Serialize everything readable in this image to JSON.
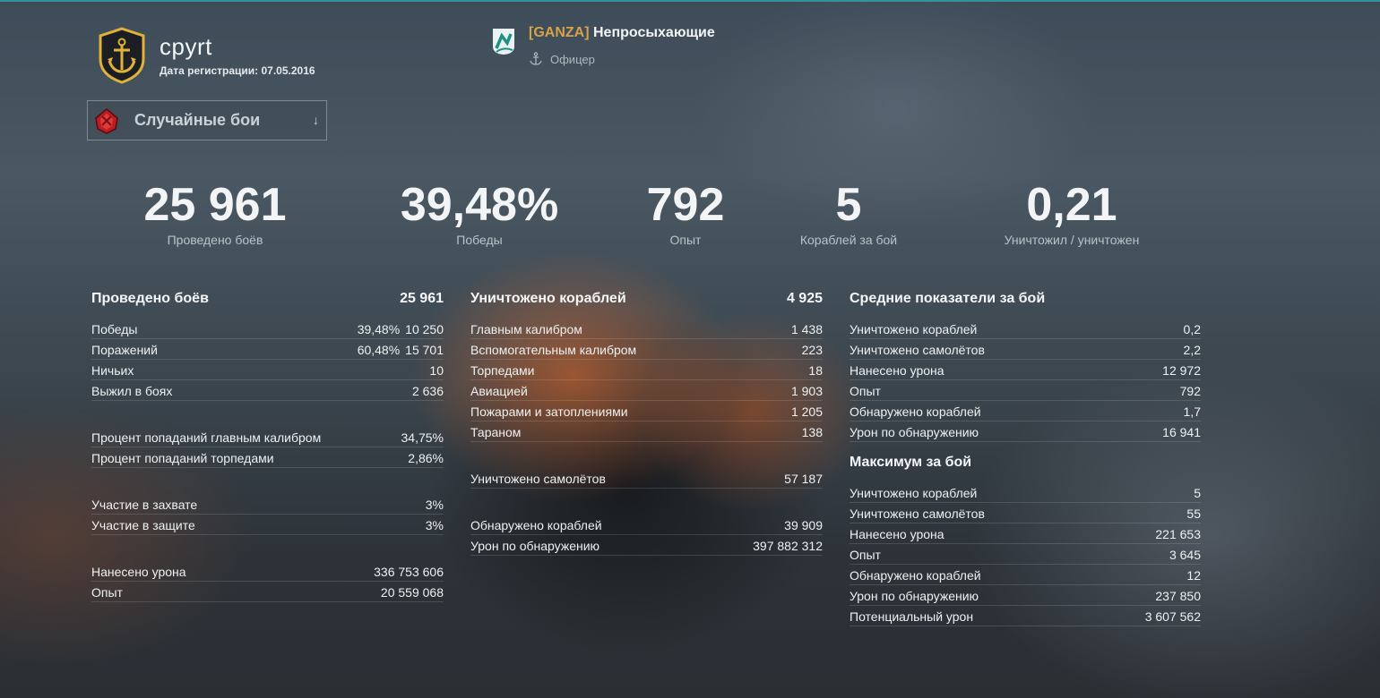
{
  "player": {
    "name": "cpyrt",
    "registration": "Дата регистрации: 07.05.2016"
  },
  "clan": {
    "tag": "[GANZA]",
    "name": "Непросыхающие",
    "role": "Офицер"
  },
  "mode_selector": {
    "label": "Случайные бои"
  },
  "summary": [
    {
      "value": "25 961",
      "label": "Проведено боёв"
    },
    {
      "value": "39,48%",
      "label": "Победы"
    },
    {
      "value": "792",
      "label": "Опыт"
    },
    {
      "value": "5",
      "label": "Кораблей за бой"
    },
    {
      "value": "0,21",
      "label": "Уничтожил / уничтожен"
    }
  ],
  "col1": {
    "title": "Проведено боёв",
    "title_value": "25 961",
    "group1": [
      {
        "label": "Победы",
        "pct": "39,48%",
        "value": "10 250"
      },
      {
        "label": "Поражений",
        "pct": "60,48%",
        "value": "15 701"
      },
      {
        "label": "Ничьих",
        "value": "10"
      },
      {
        "label": "Выжил в боях",
        "value": "2 636"
      }
    ],
    "group2": [
      {
        "label": "Процент попаданий главным калибром",
        "value": "34,75%"
      },
      {
        "label": "Процент попаданий торпедами",
        "value": "2,86%"
      }
    ],
    "group3": [
      {
        "label": "Участие в захвате",
        "value": "3%"
      },
      {
        "label": "Участие в защите",
        "value": "3%"
      }
    ],
    "group4": [
      {
        "label": "Нанесено урона",
        "value": "336 753 606"
      },
      {
        "label": "Опыт",
        "value": "20 559 068"
      }
    ]
  },
  "col2": {
    "title": "Уничтожено кораблей",
    "title_value": "4 925",
    "group1": [
      {
        "label": "Главным калибром",
        "value": "1 438"
      },
      {
        "label": "Вспомогательным калибром",
        "value": "223"
      },
      {
        "label": "Торпедами",
        "value": "18"
      },
      {
        "label": "Авиацией",
        "value": "1 903"
      },
      {
        "label": "Пожарами и затоплениями",
        "value": "1 205"
      },
      {
        "label": "Тараном",
        "value": "138"
      }
    ],
    "group2": [
      {
        "label": "Уничтожено самолётов",
        "value": "57 187"
      }
    ],
    "group3": [
      {
        "label": "Обнаружено кораблей",
        "value": "39 909"
      },
      {
        "label": "Урон по обнаружению",
        "value": "397 882 312"
      }
    ]
  },
  "col3": {
    "title": "Средние показатели за бой",
    "group1": [
      {
        "label": "Уничтожено кораблей",
        "value": "0,2"
      },
      {
        "label": "Уничтожено самолётов",
        "value": "2,2"
      },
      {
        "label": "Нанесено урона",
        "value": "12 972"
      },
      {
        "label": "Опыт",
        "value": "792"
      },
      {
        "label": "Обнаружено кораблей",
        "value": "1,7"
      },
      {
        "label": "Урон по обнаружению",
        "value": "16 941"
      }
    ],
    "title2": "Максимум за бой",
    "group2": [
      {
        "label": "Уничтожено кораблей",
        "value": "5"
      },
      {
        "label": "Уничтожено самолётов",
        "value": "55"
      },
      {
        "label": "Нанесено урона",
        "value": "221 653"
      },
      {
        "label": "Опыт",
        "value": "3 645"
      },
      {
        "label": "Обнаружено кораблей",
        "value": "12"
      },
      {
        "label": "Урон по обнаружению",
        "value": "237 850"
      },
      {
        "label": "Потенциальный урон",
        "value": "3 607 562"
      }
    ]
  },
  "icons": {
    "rank_badge": "anchor-rank-badge-icon",
    "clan_emblem": "clan-emblem-icon",
    "role": "anchor-icon",
    "mode": "random-battles-icon",
    "dropdown": "arrow-down-icon"
  },
  "colors": {
    "accent_top_line": "#27c3c7",
    "clan_tag": "#d8a24a",
    "badge_gold": "#e0b23a"
  }
}
